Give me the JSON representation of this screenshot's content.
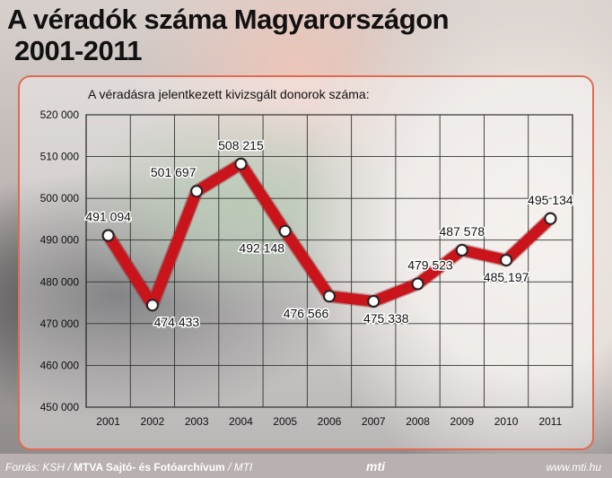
{
  "header": {
    "title_line1": "A véradók száma Magyarországon",
    "title_line2": "2001-2011"
  },
  "chart_data": {
    "type": "line",
    "title": "A véradásra jelentkezett kivizsgált donorok száma:",
    "categories": [
      "2001",
      "2002",
      "2003",
      "2004",
      "2005",
      "2006",
      "2007",
      "2008",
      "2009",
      "2010",
      "2011"
    ],
    "values": [
      491094,
      474433,
      501697,
      508215,
      492148,
      476566,
      475338,
      479523,
      487578,
      485197,
      495134
    ],
    "data_labels": [
      "491 094",
      "474 433",
      "501 697",
      "508 215",
      "492 148",
      "476 566",
      "475 338",
      "479 523",
      "487 578",
      "485 197",
      "495 134"
    ],
    "ylim": [
      450000,
      520000
    ],
    "yticks": [
      "450 000",
      "460 000",
      "470 000",
      "480 000",
      "490 000",
      "500 000",
      "510 000",
      "520 000"
    ],
    "grid": true,
    "line_color": "#c9141b",
    "marker_fill": "#ffffff"
  },
  "footer": {
    "source_prefix": "Forrás: KSH / ",
    "source_bold": "MTVA Sajtó- és Fotóarchívum",
    "source_suffix": " / MTI",
    "logo": "mti",
    "url": "www.mti.hu"
  }
}
